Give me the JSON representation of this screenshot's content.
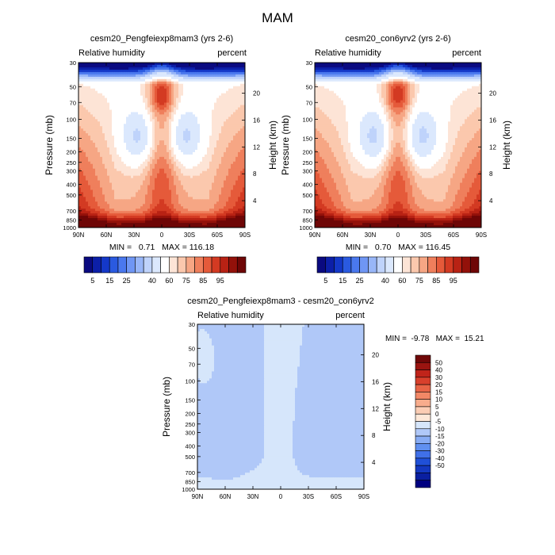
{
  "figure": {
    "title": "MAM"
  },
  "colors": {
    "main_scale": [
      "#0a0a80",
      "#0c1fa8",
      "#1438c8",
      "#2a5ae0",
      "#4a78ee",
      "#6f96f4",
      "#98b6f8",
      "#bfd3fb",
      "#dbe8fd",
      "#ffffff",
      "#fde4d6",
      "#fbc8ad",
      "#f6a684",
      "#ef7f5c",
      "#e55a3a",
      "#d33a22",
      "#b82214",
      "#93110a",
      "#6e0606"
    ],
    "diff_scale": [
      "#000080",
      "#0a1fa0",
      "#1438c0",
      "#2050d8",
      "#4070e8",
      "#6090f0",
      "#88acf4",
      "#b0c8f8",
      "#d6e6fb",
      "#fde8d8",
      "#fbcdb4",
      "#f8ac8c",
      "#f28866",
      "#e86446",
      "#d8402c",
      "#c0241a",
      "#9a1410",
      "#700808"
    ]
  },
  "chart_data": [
    {
      "type": "heatmap",
      "title": "cesm20_Pengfeiexp8mam3 (yrs 2-6)",
      "left_label": "Relative humidity",
      "right_label": "percent",
      "xlabel": "",
      "ylabel": "Pressure (mb)",
      "y2label": "Height (km)",
      "x_tick_labels": [
        "90N",
        "60N",
        "30N",
        "0",
        "30S",
        "60S",
        "90S"
      ],
      "y_tick_labels": [
        "30",
        "50",
        "70",
        "100",
        "150",
        "200",
        "250",
        "300",
        "400",
        "500",
        "700",
        "850",
        "1000"
      ],
      "y_tick_values": [
        30,
        50,
        70,
        100,
        150,
        200,
        250,
        300,
        400,
        500,
        700,
        850,
        1000
      ],
      "height_tick_labels": [
        "4",
        "8",
        "12",
        "16",
        "20"
      ],
      "height_tick_values": [
        4,
        8,
        12,
        16,
        20
      ],
      "stats_label": "MIN =   0.71   MAX = 116.18",
      "min": 0.71,
      "max": 116.18
    },
    {
      "type": "heatmap",
      "title": "cesm20_con6yrv2 (yrs 2-6)",
      "left_label": "Relative humidity",
      "right_label": "percent",
      "xlabel": "",
      "ylabel": "Pressure (mb)",
      "y2label": "Height (km)",
      "x_tick_labels": [
        "90N",
        "60N",
        "30N",
        "0",
        "30S",
        "60S",
        "90S"
      ],
      "y_tick_labels": [
        "30",
        "50",
        "70",
        "100",
        "150",
        "200",
        "250",
        "300",
        "400",
        "500",
        "700",
        "850",
        "1000"
      ],
      "y_tick_values": [
        30,
        50,
        70,
        100,
        150,
        200,
        250,
        300,
        400,
        500,
        700,
        850,
        1000
      ],
      "height_tick_labels": [
        "4",
        "8",
        "12",
        "16",
        "20"
      ],
      "height_tick_values": [
        4,
        8,
        12,
        16,
        20
      ],
      "stats_label": "MIN =   0.70   MAX = 116.45",
      "min": 0.7,
      "max": 116.45
    },
    {
      "type": "heatmap",
      "title": "cesm20_Pengfeiexp8mam3 - cesm20_con6yrv2",
      "left_label": "Relative humidity",
      "right_label": "percent",
      "xlabel": "",
      "ylabel": "Pressure (mb)",
      "y2label": "Height (km)",
      "x_tick_labels": [
        "90N",
        "60N",
        "30N",
        "0",
        "30S",
        "60S",
        "90S"
      ],
      "y_tick_labels": [
        "30",
        "50",
        "70",
        "100",
        "150",
        "200",
        "250",
        "300",
        "400",
        "500",
        "700",
        "850",
        "1000"
      ],
      "y_tick_values": [
        30,
        50,
        70,
        100,
        150,
        200,
        250,
        300,
        400,
        500,
        700,
        850,
        1000
      ],
      "height_tick_labels": [
        "4",
        "8",
        "12",
        "16",
        "20"
      ],
      "height_tick_values": [
        4,
        8,
        12,
        16,
        20
      ],
      "stats_label": "MIN =  -9.78   MAX =  15.21",
      "min": -9.78,
      "max": 15.21
    }
  ],
  "colorbar_main": {
    "labels": [
      "5",
      "15",
      "25",
      "40",
      "60",
      "75",
      "85",
      "95"
    ]
  },
  "colorbar_diff": {
    "labels": [
      "50",
      "40",
      "30",
      "20",
      "15",
      "10",
      "5",
      "0",
      "-5",
      "-10",
      "-15",
      "-20",
      "-30",
      "-40",
      "-50"
    ]
  }
}
